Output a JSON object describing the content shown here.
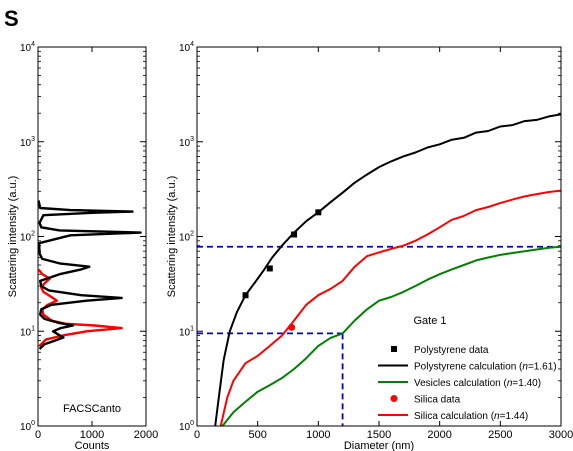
{
  "panel_label": "S",
  "chart_data": [
    {
      "type": "line",
      "subtype": "histogram",
      "orientation": "horizontal",
      "annotation": "FACSCanto",
      "xlabel": "Counts",
      "ylabel": "Scattering intensity (a.u.)",
      "xlim": [
        0,
        2000
      ],
      "ylim": [
        1,
        10000
      ],
      "yscale": "log",
      "xticks": [
        0,
        1000,
        2000
      ],
      "yticks": [
        1,
        10,
        100,
        1000,
        10000
      ],
      "ytick_labels": [
        "10^0",
        "10^1",
        "10^2",
        "10^3",
        "10^4"
      ],
      "series": [
        {
          "color": "#000000",
          "points": [
            [
              30,
              6.5
            ],
            [
              120,
              7.3
            ],
            [
              300,
              7.9
            ],
            [
              470,
              8.6
            ],
            [
              380,
              9.2
            ],
            [
              280,
              10.0
            ],
            [
              420,
              10.8
            ],
            [
              650,
              11.5
            ],
            [
              400,
              12.2
            ],
            [
              120,
              13.5
            ],
            [
              40,
              15
            ],
            [
              60,
              17
            ],
            [
              250,
              19
            ],
            [
              900,
              21
            ],
            [
              1550,
              22.5
            ],
            [
              800,
              24
            ],
            [
              200,
              27
            ],
            [
              60,
              30
            ],
            [
              40,
              34
            ],
            [
              400,
              40
            ],
            [
              800,
              45
            ],
            [
              950,
              48
            ],
            [
              400,
              52
            ],
            [
              80,
              58
            ],
            [
              30,
              66
            ],
            [
              20,
              85
            ],
            [
              600,
              103
            ],
            [
              1900,
              110
            ],
            [
              400,
              116
            ],
            [
              60,
              125
            ],
            [
              30,
              140
            ],
            [
              100,
              168
            ],
            [
              1000,
              178
            ],
            [
              1750,
              183
            ],
            [
              600,
              190
            ],
            [
              40,
              200
            ],
            [
              10,
              240
            ]
          ]
        },
        {
          "color": "#ff0000",
          "points": [
            [
              30,
              7.0
            ],
            [
              150,
              8.2
            ],
            [
              500,
              9.1
            ],
            [
              900,
              10.0
            ],
            [
              1550,
              10.8
            ],
            [
              1050,
              11.5
            ],
            [
              500,
              12.0
            ],
            [
              250,
              13.0
            ],
            [
              100,
              15.0
            ],
            [
              80,
              17
            ],
            [
              180,
              19
            ],
            [
              350,
              21
            ],
            [
              250,
              23
            ],
            [
              100,
              26
            ],
            [
              60,
              29
            ],
            [
              120,
              32
            ],
            [
              220,
              36
            ],
            [
              80,
              40
            ],
            [
              10,
              45
            ]
          ]
        }
      ]
    },
    {
      "type": "line",
      "xlabel": "Diameter (nm)",
      "ylabel": "Scattering intensity (a.u.)",
      "xlim": [
        0,
        3000
      ],
      "ylim": [
        1,
        10000
      ],
      "yscale": "log",
      "xticks": [
        0,
        500,
        1000,
        1500,
        2000,
        2500,
        3000
      ],
      "yticks": [
        1,
        10,
        100,
        1000,
        10000
      ],
      "ytick_labels": [
        "10^0",
        "10^1",
        "10^2",
        "10^3",
        "10^4"
      ],
      "legend_position": "bottom-right",
      "gate_label": "Gate 1",
      "gate": {
        "x_max": 1200,
        "y_min": 9.5,
        "y_max": 78,
        "x_low_left": 0
      },
      "series": [
        {
          "name": "Polystyrene data",
          "kind": "scatter",
          "marker": "square",
          "color": "#000000",
          "x": [
            400,
            600,
            800,
            1000
          ],
          "y": [
            24,
            46,
            105,
            180
          ]
        },
        {
          "name": "Polystyrene calculation (n=1.61)",
          "kind": "line",
          "color": "#000000",
          "x": [
            150,
            180,
            220,
            270,
            330,
            400,
            480,
            550,
            620,
            700,
            800,
            900,
            1000,
            1100,
            1200,
            1300,
            1400,
            1500,
            1600,
            1700,
            1800,
            1900,
            2000,
            2100,
            2200,
            2300,
            2400,
            2500,
            2600,
            2700,
            2800,
            2900,
            3000
          ],
          "y": [
            1.0,
            2.0,
            5.0,
            10,
            16,
            24,
            33,
            44,
            60,
            80,
            110,
            145,
            180,
            230,
            290,
            370,
            450,
            540,
            620,
            700,
            770,
            870,
            940,
            1050,
            1100,
            1250,
            1300,
            1450,
            1500,
            1650,
            1700,
            1850,
            1950
          ]
        },
        {
          "name": "Vesicles calculation (n=1.40)",
          "kind": "line",
          "color": "#008000",
          "x": [
            210,
            300,
            400,
            500,
            600,
            700,
            800,
            900,
            1000,
            1100,
            1200,
            1300,
            1400,
            1500,
            1600,
            1700,
            1800,
            1900,
            2000,
            2100,
            2200,
            2300,
            2400,
            2500,
            2600,
            2700,
            2800,
            2900,
            3000
          ],
          "y": [
            1.0,
            1.4,
            1.8,
            2.3,
            2.7,
            3.2,
            4.0,
            5.2,
            7.0,
            8.5,
            9.5,
            13,
            17,
            21,
            23,
            26,
            30,
            35,
            40,
            45,
            50,
            56,
            60,
            64,
            67,
            70,
            73,
            76,
            78
          ]
        },
        {
          "name": "Silica data",
          "kind": "scatter",
          "marker": "circle",
          "color": "#ff0000",
          "x": [
            780
          ],
          "y": [
            11
          ]
        },
        {
          "name": "Silica calculation (n=1.44)",
          "kind": "line",
          "color": "#ff0000",
          "x": [
            195,
            250,
            300,
            400,
            500,
            600,
            700,
            800,
            900,
            1000,
            1100,
            1200,
            1300,
            1400,
            1500,
            1600,
            1700,
            1800,
            1900,
            2000,
            2100,
            2200,
            2300,
            2400,
            2500,
            2600,
            2700,
            2800,
            2900,
            3000
          ],
          "y": [
            1.0,
            2.0,
            3.0,
            4.6,
            5.5,
            7.0,
            9.0,
            13,
            19,
            24,
            28,
            34,
            48,
            62,
            68,
            74,
            80,
            90,
            105,
            125,
            150,
            165,
            190,
            205,
            225,
            245,
            265,
            280,
            295,
            305
          ]
        }
      ]
    }
  ]
}
